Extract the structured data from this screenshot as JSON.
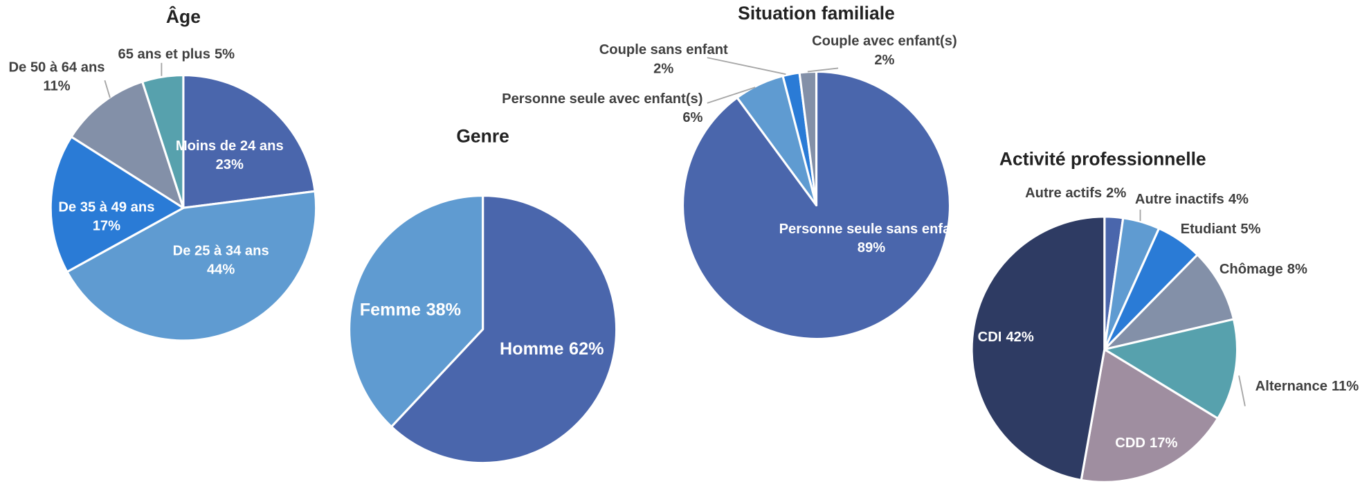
{
  "chart_data": [
    {
      "type": "pie",
      "title": "Âge",
      "categories": [
        "Moins de 24 ans",
        "De 25 à 34 ans",
        "De 35 à 49 ans",
        "De 50 à 64 ans",
        "65 ans et plus"
      ],
      "values": [
        23,
        44,
        17,
        11,
        5
      ],
      "value_labels": [
        "23%",
        "44%",
        "17%",
        "11%",
        "5%"
      ],
      "colors": [
        "#4a66ac",
        "#5f9bd1",
        "#2a7bd6",
        "#8390a8",
        "#57a1ad"
      ]
    },
    {
      "type": "pie",
      "title": "Genre",
      "categories": [
        "Homme",
        "Femme"
      ],
      "values": [
        62,
        38
      ],
      "value_labels": [
        "62%",
        "38%"
      ],
      "colors": [
        "#4a66ac",
        "#5f9bd1"
      ]
    },
    {
      "type": "pie",
      "title": "Situation familiale",
      "categories": [
        "Personne seule sans enfant",
        "Personne seule avec enfant(s)",
        "Couple sans enfant",
        "Couple avec enfant(s)"
      ],
      "values": [
        89,
        6,
        2,
        2
      ],
      "value_labels": [
        "89%",
        "6%",
        "2%",
        "2%"
      ],
      "colors": [
        "#4a66ac",
        "#5f9bd1",
        "#2a7bd6",
        "#8390a8"
      ]
    },
    {
      "type": "pie",
      "title": "Activité professionnelle",
      "categories": [
        "Autre actifs",
        "Autre inactifs",
        "Etudiant",
        "Chômage",
        "Alternance",
        "CDD",
        "CDI"
      ],
      "values": [
        2,
        4,
        5,
        8,
        11,
        17,
        42
      ],
      "value_labels": [
        "2%",
        "4%",
        "5%",
        "8%",
        "11%",
        "17%",
        "42%"
      ],
      "colors": [
        "#4a66ac",
        "#5f9bd1",
        "#2a7bd6",
        "#8390a8",
        "#57a1ad",
        "#9f8ea0",
        "#2e3b63"
      ]
    }
  ]
}
